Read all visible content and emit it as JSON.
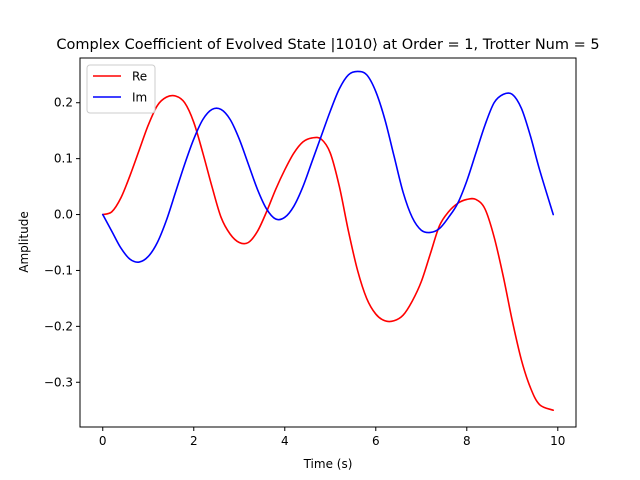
{
  "chart_data": {
    "type": "line",
    "title": "Complex Coefficient of Evolved State |1010⟩ at Order = 1, Trotter Num = 5",
    "xlabel": "Time (s)",
    "ylabel": "Amplitude",
    "xlim": [
      -0.5,
      10.4
    ],
    "ylim": [
      -0.38,
      0.28
    ],
    "xticks": [
      0,
      2,
      4,
      6,
      8,
      10
    ],
    "xtick_labels": [
      "0",
      "2",
      "4",
      "6",
      "8",
      "10"
    ],
    "yticks": [
      -0.3,
      -0.2,
      -0.1,
      0.0,
      0.1,
      0.2
    ],
    "ytick_labels": [
      "−0.3",
      "−0.2",
      "−0.1",
      "0.0",
      "0.1",
      "0.2"
    ],
    "grid": false,
    "legend_position": "upper left",
    "series": [
      {
        "name": "Re",
        "color": "#ff0000",
        "x": [
          0,
          0.2,
          0.4,
          0.6,
          0.8,
          1.0,
          1.2,
          1.4,
          1.6,
          1.8,
          2.0,
          2.2,
          2.4,
          2.6,
          2.8,
          3.0,
          3.2,
          3.4,
          3.6,
          3.8,
          4.0,
          4.2,
          4.4,
          4.6,
          4.8,
          5.0,
          5.2,
          5.4,
          5.6,
          5.8,
          6.0,
          6.2,
          6.4,
          6.6,
          6.8,
          7.0,
          7.2,
          7.4,
          7.6,
          7.8,
          8.0,
          8.2,
          8.4,
          8.6,
          8.8,
          9.0,
          9.2,
          9.4,
          9.6,
          9.9
        ],
        "y": [
          0.0,
          0.005,
          0.03,
          0.07,
          0.115,
          0.16,
          0.195,
          0.21,
          0.212,
          0.2,
          0.165,
          0.11,
          0.05,
          -0.005,
          -0.035,
          -0.05,
          -0.05,
          -0.03,
          0.005,
          0.045,
          0.08,
          0.11,
          0.13,
          0.137,
          0.135,
          0.11,
          0.05,
          -0.03,
          -0.1,
          -0.15,
          -0.178,
          -0.19,
          -0.19,
          -0.18,
          -0.155,
          -0.12,
          -0.07,
          -0.02,
          0.005,
          0.02,
          0.027,
          0.027,
          0.01,
          -0.04,
          -0.11,
          -0.19,
          -0.26,
          -0.31,
          -0.34,
          -0.35
        ]
      },
      {
        "name": "Im",
        "color": "#0000ff",
        "x": [
          0,
          0.2,
          0.4,
          0.6,
          0.8,
          1.0,
          1.2,
          1.4,
          1.6,
          1.8,
          2.0,
          2.2,
          2.4,
          2.6,
          2.8,
          3.0,
          3.2,
          3.4,
          3.6,
          3.8,
          4.0,
          4.2,
          4.4,
          4.6,
          4.8,
          5.0,
          5.2,
          5.4,
          5.6,
          5.8,
          6.0,
          6.2,
          6.4,
          6.6,
          6.8,
          7.0,
          7.2,
          7.4,
          7.6,
          7.8,
          8.0,
          8.2,
          8.4,
          8.6,
          8.8,
          9.0,
          9.2,
          9.4,
          9.6,
          9.9
        ],
        "y": [
          0.0,
          -0.03,
          -0.06,
          -0.08,
          -0.085,
          -0.075,
          -0.05,
          -0.01,
          0.04,
          0.09,
          0.135,
          0.17,
          0.188,
          0.188,
          0.17,
          0.135,
          0.09,
          0.045,
          0.01,
          -0.008,
          -0.005,
          0.015,
          0.05,
          0.095,
          0.14,
          0.185,
          0.225,
          0.25,
          0.256,
          0.25,
          0.22,
          0.17,
          0.105,
          0.04,
          -0.005,
          -0.028,
          -0.032,
          -0.025,
          -0.005,
          0.02,
          0.06,
          0.11,
          0.16,
          0.2,
          0.215,
          0.215,
          0.19,
          0.14,
          0.08,
          0.0
        ]
      }
    ]
  }
}
